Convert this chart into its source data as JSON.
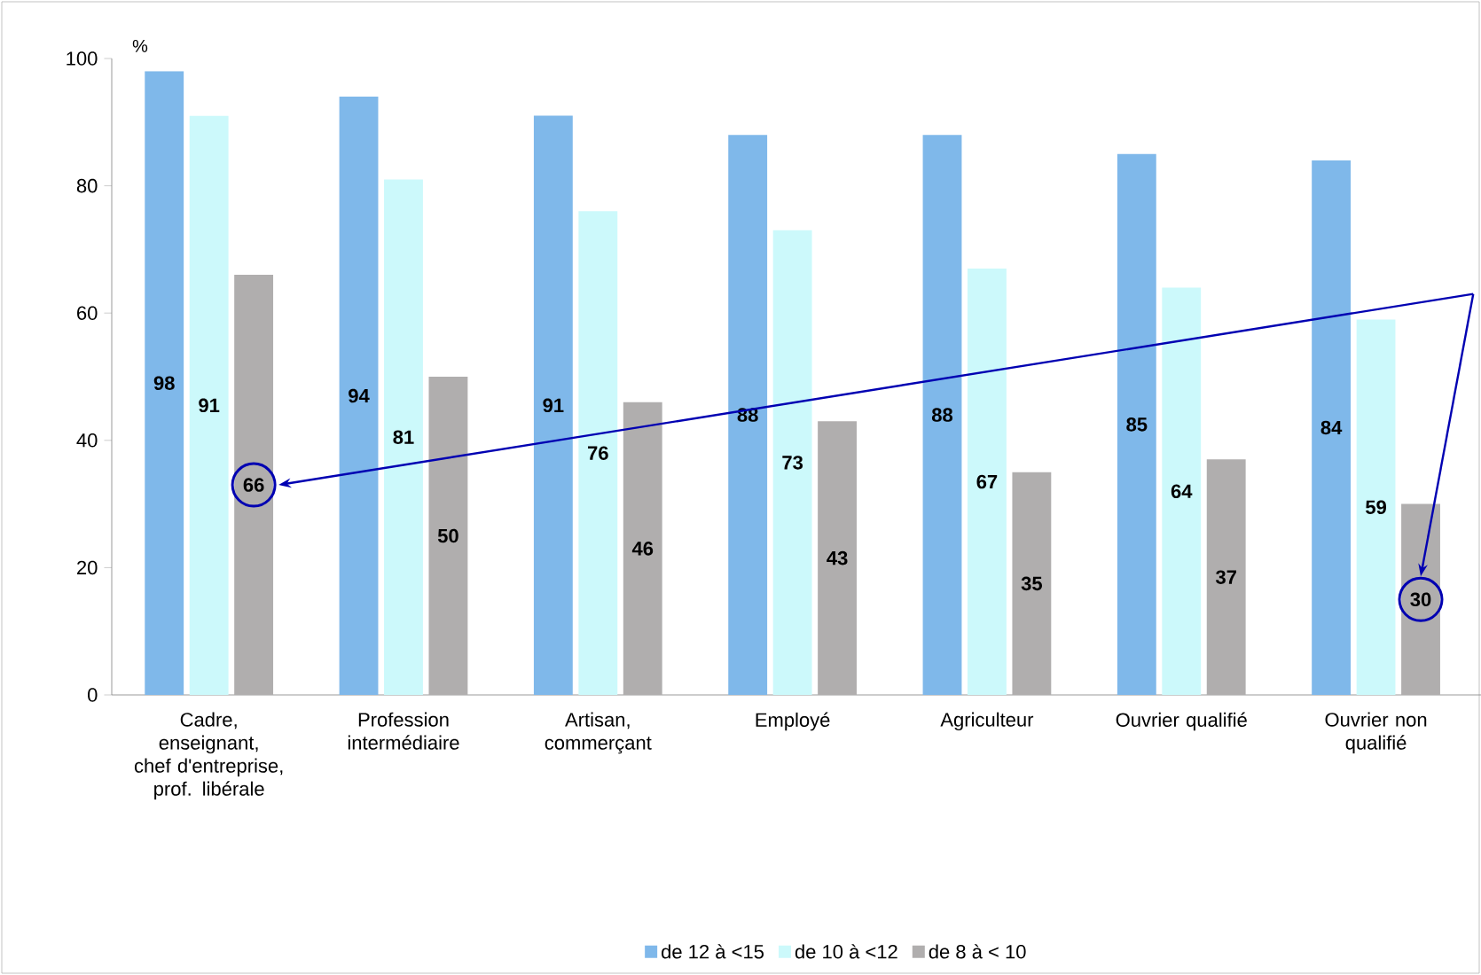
{
  "chart_data": {
    "type": "bar",
    "ylabel": "%",
    "categories": [
      "Cadre, enseignant, chef d'entreprise, prof. libérale",
      "Profession intermédiaire",
      "Artisan, commerçant",
      "Employé",
      "Agriculteur",
      "Ouvrier qualifié",
      "Ouvrier non qualifié"
    ],
    "series": [
      {
        "name": "de 12 à <15",
        "color": "#7fb8ea",
        "values": [
          98,
          94,
          91,
          88,
          88,
          85,
          84
        ]
      },
      {
        "name": "de 10 à <12",
        "color": "#ccf9fb",
        "values": [
          91,
          81,
          76,
          73,
          67,
          64,
          59
        ]
      },
      {
        "name": "de 8 à < 10",
        "color": "#b0aeae",
        "values": [
          66,
          50,
          46,
          43,
          35,
          37,
          30
        ]
      }
    ],
    "ylim": [
      0,
      100
    ],
    "yticks": [
      0,
      20,
      40,
      60,
      80,
      100
    ],
    "grid": false,
    "legend": "bottom",
    "data_labels": true
  }
}
